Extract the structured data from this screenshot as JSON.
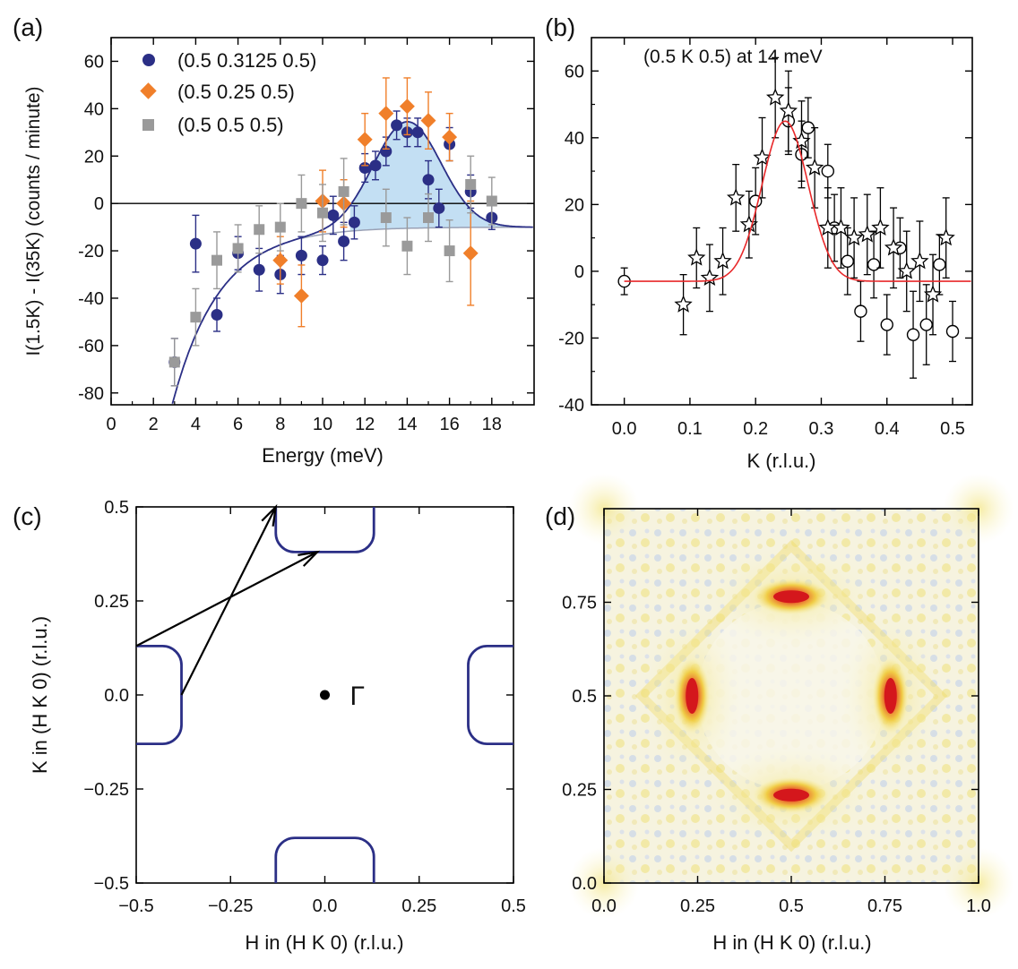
{
  "chart_data": [
    {
      "panel": "(a)",
      "type": "scatter",
      "xlabel": "Energy (meV)",
      "ylabel": "I(1.5K) - I(35K) (counts / minute)",
      "xlim": [
        0,
        20
      ],
      "ylim": [
        -85,
        70
      ],
      "xticks": [
        "0",
        "2",
        "4",
        "6",
        "8",
        "10",
        "12",
        "14",
        "16",
        "18"
      ],
      "yticks": [
        "-80",
        "-60",
        "-40",
        "-20",
        "0",
        "20",
        "40",
        "60"
      ],
      "legend": [
        "(0.5 0.3125 0.5)",
        "(0.5 0.25 0.5)",
        "(0.5 0.5 0.5)"
      ],
      "colors": {
        "navy": "#2b2f86",
        "orange": "#f07f2a",
        "gray": "#9a9a9a",
        "fill": "#bcdcf2"
      },
      "series": [
        {
          "name": "(0.5 0.3125 0.5)",
          "marker": "circle",
          "x": [
            3,
            4,
            5,
            6,
            7,
            8,
            9,
            10,
            10.5,
            11,
            11.5,
            12,
            12.5,
            13,
            13.5,
            14,
            14.5,
            15,
            15.5,
            16,
            17,
            18
          ],
          "y": [
            -67,
            -17,
            -47,
            -21,
            -28,
            -30,
            -22,
            -24,
            -5,
            -16,
            -8,
            15,
            16,
            22,
            33,
            30,
            30,
            10,
            -2,
            25,
            5,
            -6
          ],
          "err": [
            10,
            12,
            7,
            7,
            9,
            8,
            8,
            6,
            8,
            8,
            7,
            6,
            6,
            6,
            6,
            6,
            6,
            8,
            8,
            7,
            7,
            5
          ]
        },
        {
          "name": "(0.5 0.25 0.5)",
          "marker": "diamond",
          "x": [
            8,
            9,
            10,
            11,
            12,
            13,
            14,
            15,
            16,
            17
          ],
          "y": [
            -24,
            -39,
            1,
            0,
            27,
            38,
            41,
            35,
            28,
            -21
          ],
          "err": [
            10,
            13,
            13,
            10,
            11,
            15,
            12,
            12,
            10,
            22
          ]
        },
        {
          "name": "(0.5 0.5 0.5)",
          "marker": "square",
          "x": [
            3,
            4,
            5,
            6,
            7,
            8,
            9,
            10,
            11,
            13,
            14,
            15,
            16,
            17,
            18
          ],
          "y": [
            -67,
            -48,
            -24,
            -19,
            -11,
            -10,
            0,
            -4,
            5,
            -6,
            -18,
            -6,
            -20,
            8,
            1
          ],
          "err": [
            10,
            12,
            12,
            10,
            10,
            10,
            12,
            12,
            14,
            12,
            12,
            10,
            13,
            12,
            10
          ]
        }
      ],
      "fit_curve": "navy",
      "baseline_curve": "gray"
    },
    {
      "panel": "(b)",
      "type": "scatter",
      "annotation": "(0.5 K 0.5) at 14 meV",
      "xlabel": "K (r.l.u.)",
      "ylabel": "",
      "xlim": [
        -0.05,
        0.53
      ],
      "ylim": [
        -40,
        70
      ],
      "xticks": [
        "0.0",
        "0.1",
        "0.2",
        "0.3",
        "0.4",
        "0.5"
      ],
      "yticks": [
        "-40",
        "-20",
        "0",
        "20",
        "40",
        "60"
      ],
      "colors": {
        "fit": "#e8282a"
      },
      "series": [
        {
          "name": "circles",
          "marker": "circle",
          "x": [
            0.0,
            0.2,
            0.25,
            0.27,
            0.28,
            0.31,
            0.32,
            0.34,
            0.36,
            0.38,
            0.4,
            0.42,
            0.44,
            0.46,
            0.48,
            0.5
          ],
          "y": [
            -3,
            21,
            45,
            35,
            43,
            30,
            13,
            3,
            -12,
            2,
            -16,
            7,
            -19,
            -16,
            2,
            -18
          ],
          "err": [
            4,
            10,
            10,
            10,
            9,
            8,
            10,
            10,
            9,
            10,
            9,
            9,
            13,
            12,
            9,
            9
          ]
        },
        {
          "name": "stars",
          "marker": "star",
          "x": [
            0.09,
            0.11,
            0.13,
            0.15,
            0.17,
            0.19,
            0.21,
            0.23,
            0.25,
            0.27,
            0.29,
            0.31,
            0.33,
            0.35,
            0.37,
            0.39,
            0.41,
            0.43,
            0.45,
            0.47,
            0.49
          ],
          "y": [
            -10,
            4,
            -2,
            3,
            22,
            14,
            34,
            52,
            48,
            39,
            31,
            13,
            13,
            10,
            11,
            13,
            7,
            0,
            3,
            -7,
            10
          ],
          "err": [
            9,
            9,
            10,
            10,
            10,
            10,
            12,
            12,
            12,
            12,
            12,
            12,
            12,
            12,
            12,
            12,
            12,
            12,
            12,
            12,
            12
          ]
        }
      ],
      "fit": {
        "baseline": -3,
        "amplitude": 48,
        "center": 0.245,
        "sigma": 0.035
      }
    },
    {
      "panel": "(c)",
      "type": "diagram",
      "xlabel": "H in (H K 0) (r.l.u.)",
      "ylabel": "K in (H K 0) (r.l.u.)",
      "xlim": [
        -0.5,
        0.5
      ],
      "ylim": [
        -0.5,
        0.5
      ],
      "xticks": [
        "−0.5",
        "−0.25",
        "0.0",
        "0.25",
        "0.5"
      ],
      "yticks": [
        "−0.5",
        "−0.25",
        "0.0",
        "0.25",
        "0.5"
      ],
      "gamma_label": "Γ",
      "fermi_pockets": [
        {
          "center": [
            0,
            0.5
          ],
          "half_width": 0.13,
          "half_height": 0.12
        },
        {
          "center": [
            0,
            -0.5
          ],
          "half_width": 0.13,
          "half_height": 0.12
        },
        {
          "center": [
            -0.5,
            0
          ],
          "half_width": 0.12,
          "half_height": 0.13
        },
        {
          "center": [
            0.5,
            0
          ],
          "half_width": 0.12,
          "half_height": 0.13
        }
      ],
      "nesting_vectors": [
        {
          "from": [
            -0.38,
            0
          ],
          "to": [
            -0.13,
            0.5
          ]
        },
        {
          "from": [
            -0.5,
            0.13
          ],
          "to": [
            -0.02,
            0.38
          ]
        }
      ]
    },
    {
      "panel": "(d)",
      "type": "heatmap",
      "xlabel": "H in (H K 0) (r.l.u.)",
      "ylabel": "",
      "xlim": [
        0,
        1
      ],
      "ylim": [
        0,
        1
      ],
      "xticks": [
        "0.0",
        "0.25",
        "0.5",
        "0.75",
        "1.0"
      ],
      "yticks": [
        "0.0",
        "0.25",
        "0.5",
        "0.75"
      ],
      "peaks": [
        {
          "H": 0.5,
          "K": 0.765,
          "orientation": "horizontal"
        },
        {
          "H": 0.5,
          "K": 0.235,
          "orientation": "horizontal"
        },
        {
          "H": 0.235,
          "K": 0.5,
          "orientation": "vertical"
        },
        {
          "H": 0.765,
          "K": 0.5,
          "orientation": "vertical"
        }
      ]
    }
  ],
  "panel_labels": [
    "(a)",
    "(b)",
    "(c)",
    "(d)"
  ]
}
